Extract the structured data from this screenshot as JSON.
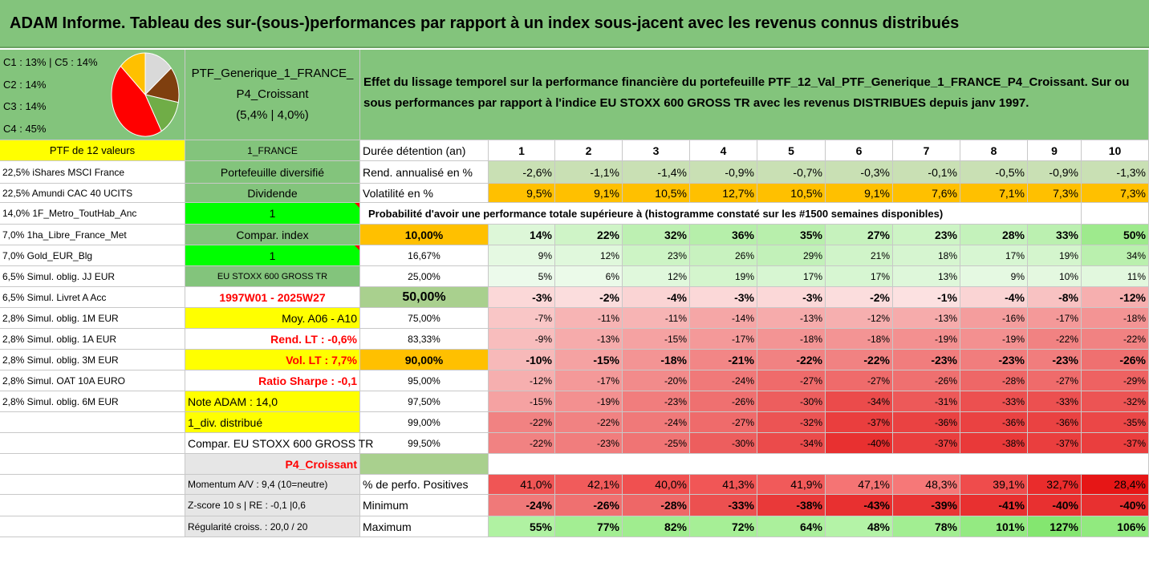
{
  "title": "ADAM Informe. Tableau des sur-(sous-)performances par rapport à un index sous-jacent avec les revenus connus distribués",
  "pie": {
    "labels": [
      "C1 : 13% | C5 : 14%",
      "C2 : 14%",
      "C3 : 14%",
      "C4 : 45%"
    ],
    "slices": [
      {
        "name": "C1",
        "pct": 13,
        "color": "#ffc000"
      },
      {
        "name": "C5",
        "pct": 14,
        "color": "#d9d9d9"
      },
      {
        "name": "C2",
        "pct": 14,
        "color": "#7f3f0f"
      },
      {
        "name": "C3",
        "pct": 14,
        "color": "#70ad47"
      },
      {
        "name": "C4",
        "pct": 45,
        "color": "#ff0000"
      }
    ]
  },
  "portfolio": {
    "name_line1": "PTF_Generique_1_FRANCE_",
    "name_line2": "P4_Croissant",
    "name_line3": "(5,4% | 4,0%)"
  },
  "description": "Effet du lissage temporel sur la performance financière du portefeuille PTF_12_Val_PTF_Generique_1_FRANCE_P4_Croissant. Sur ou sous performances par rapport à l'indice EU STOXX 600 GROSS TR avec les revenus DISTRIBUES depuis janv 1997.",
  "holdings_header": "PTF de 12 valeurs",
  "holdings": [
    "22,5% iShares MSCI France",
    "22,5% Amundi CAC 40 UCITS",
    "14,0% 1F_Metro_ToutHab_Anc",
    "7,0% 1ha_Libre_France_Met",
    "7,0% Gold_EUR_Blg",
    "6,5% Simul. oblig. JJ EUR",
    "6,5% Simul. Livret A Acc",
    "2,8% Simul. oblig. 1M EUR",
    "2,8% Simul. oblig. 1A EUR",
    "2,8% Simul. oblig. 3M EUR",
    "2,8% Simul. OAT 10A EURO",
    "2,8% Simul. oblig. 6M EUR"
  ],
  "info": [
    "1_FRANCE",
    "Portefeuille diversifié",
    "Dividende",
    "1",
    "Compar. index",
    "1",
    "EU STOXX 600 GROSS TR",
    "1997W01 - 2025W27",
    "Moy. A06 - A10",
    "Rend. LT : -0,6%",
    "Vol. LT : 7,7%",
    "Ratio Sharpe : -0,1",
    "Note ADAM : 14,0",
    "1_div. distribué",
    "Compar. EU STOXX 600 GROSS TR",
    "P4_Croissant",
    "Momentum A/V : 9,4 (10=neutre)",
    "Z-score 10 s | RE : -0,1 |0,6",
    "Régularité croiss. : 20,0 / 20"
  ],
  "labels": {
    "duree": "Durée détention (an)",
    "rend": "Rend. annualisé en %",
    "vol": "Volatilité en %",
    "proba": "Probabilité d'avoir une performance totale supérieure à (histogramme constaté sur les #1500 semaines disponibles)",
    "pos": "% de perfo. Positives",
    "min": "Minimum",
    "max": "Maximum"
  },
  "years": [
    "1",
    "2",
    "3",
    "4",
    "5",
    "6",
    "7",
    "8",
    "9",
    "10"
  ],
  "rend": [
    "-2,6%",
    "-1,1%",
    "-1,4%",
    "-0,9%",
    "-0,7%",
    "-0,3%",
    "-0,1%",
    "-0,5%",
    "-0,9%",
    "-1,3%"
  ],
  "vol": [
    "9,5%",
    "9,1%",
    "10,5%",
    "12,7%",
    "10,5%",
    "9,1%",
    "7,6%",
    "7,1%",
    "7,3%",
    "7,3%"
  ],
  "thresholds": [
    "10,00%",
    "16,67%",
    "25,00%",
    "50,00%",
    "75,00%",
    "83,33%",
    "90,00%",
    "95,00%",
    "97,50%",
    "99,00%",
    "99,50%"
  ],
  "prob": [
    [
      "14%",
      "22%",
      "32%",
      "36%",
      "35%",
      "27%",
      "23%",
      "28%",
      "33%",
      "50%"
    ],
    [
      "9%",
      "12%",
      "23%",
      "26%",
      "29%",
      "21%",
      "18%",
      "17%",
      "19%",
      "34%"
    ],
    [
      "5%",
      "6%",
      "12%",
      "19%",
      "17%",
      "17%",
      "13%",
      "9%",
      "10%",
      "11%"
    ],
    [
      "-3%",
      "-2%",
      "-4%",
      "-3%",
      "-3%",
      "-2%",
      "-1%",
      "-4%",
      "-8%",
      "-12%"
    ],
    [
      "-7%",
      "-11%",
      "-11%",
      "-14%",
      "-13%",
      "-12%",
      "-13%",
      "-16%",
      "-17%",
      "-18%"
    ],
    [
      "-9%",
      "-13%",
      "-15%",
      "-17%",
      "-18%",
      "-18%",
      "-19%",
      "-19%",
      "-22%",
      "-22%"
    ],
    [
      "-10%",
      "-15%",
      "-18%",
      "-21%",
      "-22%",
      "-22%",
      "-23%",
      "-23%",
      "-23%",
      "-26%"
    ],
    [
      "-12%",
      "-17%",
      "-20%",
      "-24%",
      "-27%",
      "-27%",
      "-26%",
      "-28%",
      "-27%",
      "-29%"
    ],
    [
      "-15%",
      "-19%",
      "-23%",
      "-26%",
      "-30%",
      "-34%",
      "-31%",
      "-33%",
      "-33%",
      "-32%"
    ],
    [
      "-22%",
      "-22%",
      "-24%",
      "-27%",
      "-32%",
      "-37%",
      "-36%",
      "-36%",
      "-36%",
      "-35%"
    ],
    [
      "-22%",
      "-23%",
      "-25%",
      "-30%",
      "-34%",
      "-40%",
      "-37%",
      "-38%",
      "-37%",
      "-37%"
    ]
  ],
  "pos": [
    "41,0%",
    "42,1%",
    "40,0%",
    "41,3%",
    "41,9%",
    "47,1%",
    "48,3%",
    "39,1%",
    "32,7%",
    "28,4%"
  ],
  "min": [
    "-24%",
    "-26%",
    "-28%",
    "-33%",
    "-38%",
    "-43%",
    "-39%",
    "-41%",
    "-40%",
    "-40%"
  ],
  "max": [
    "55%",
    "77%",
    "82%",
    "72%",
    "64%",
    "48%",
    "78%",
    "101%",
    "127%",
    "106%"
  ]
}
